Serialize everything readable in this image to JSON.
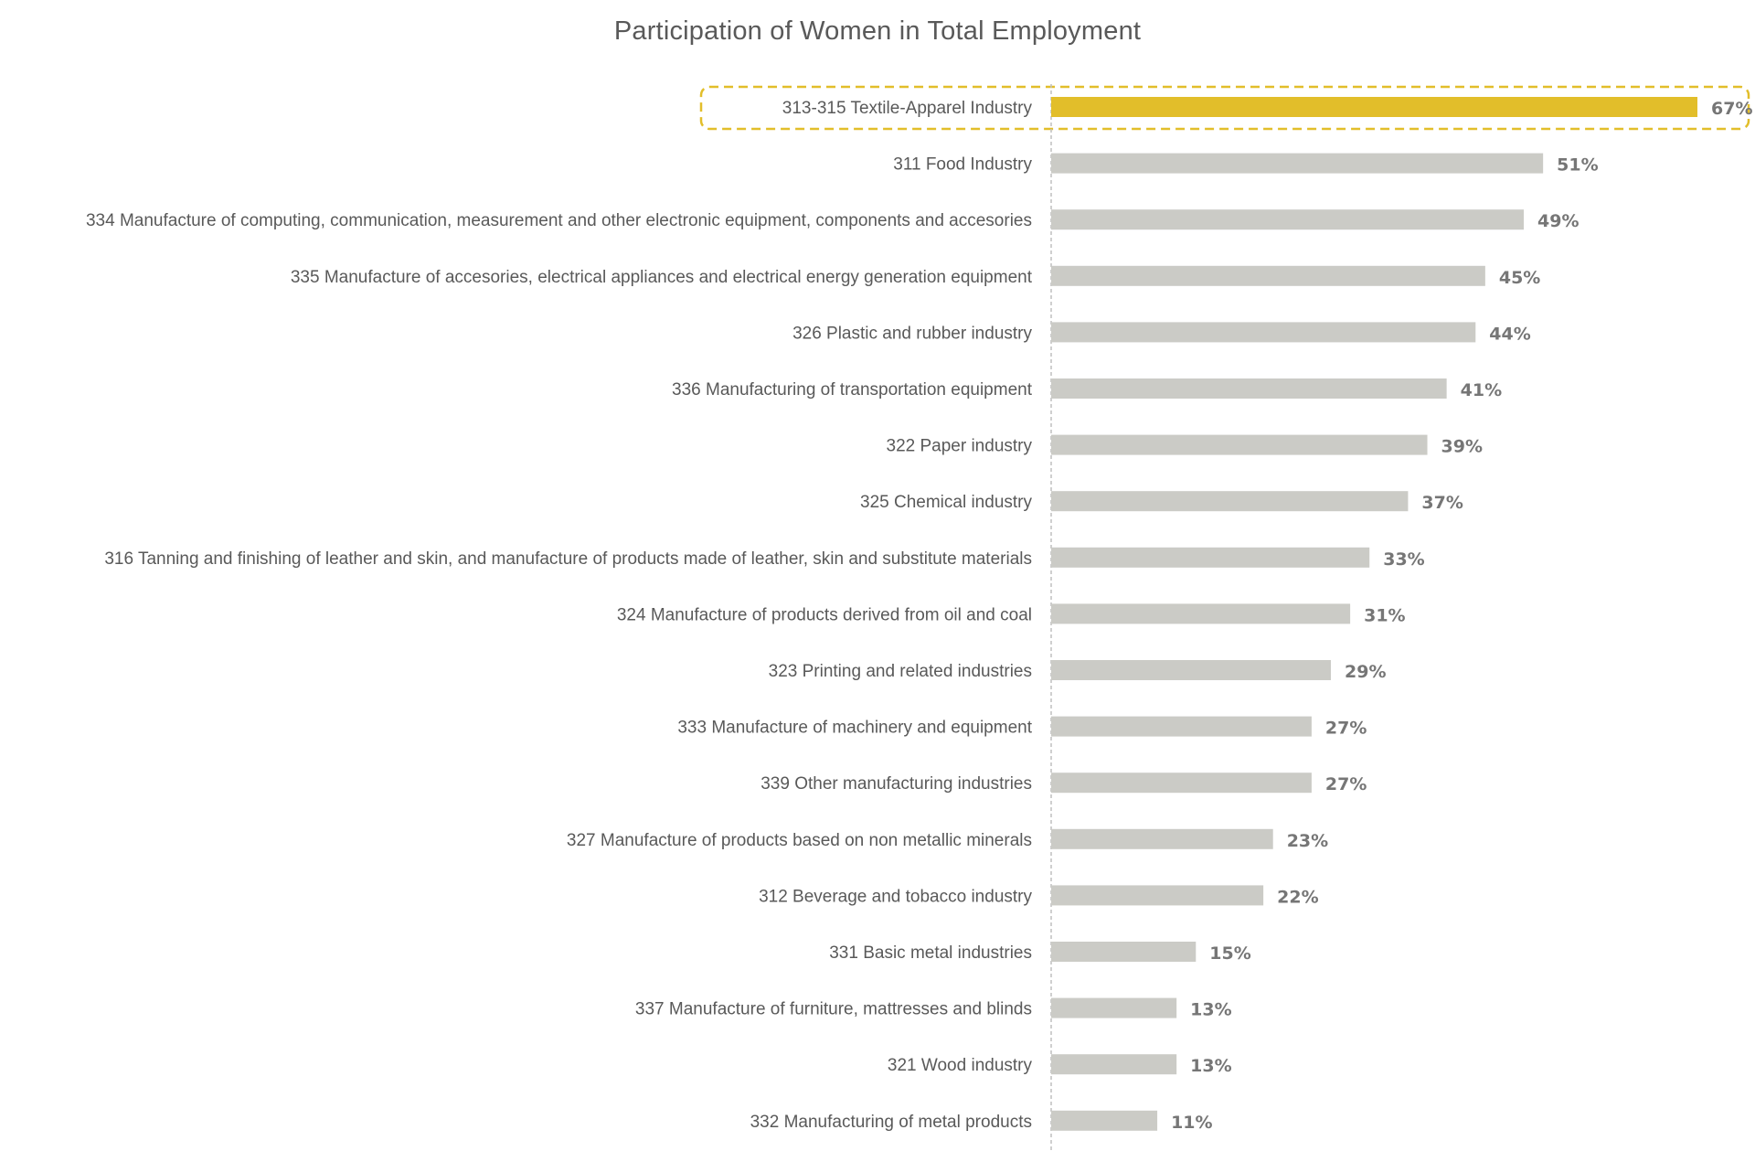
{
  "chart_data": {
    "type": "bar",
    "orientation": "horizontal",
    "title": "Participation of Women in Total Employment",
    "xlabel": "",
    "ylabel": "",
    "xlim": [
      0,
      67
    ],
    "grid": false,
    "legend": "none",
    "value_suffix": "%",
    "colors": {
      "highlight": "#E2BE2A",
      "default": "#CBCBC6",
      "highlight_border": "#E2BE2A",
      "axis": "#BFBFBF",
      "text": "#595959",
      "value_text": "#767676"
    },
    "highlighted_index": 0,
    "categories": [
      "313-315 Textile-Apparel Industry",
      "311 Food Industry",
      "334 Manufacture of computing, communication, measurement and other electronic equipment, components and accesories",
      "335 Manufacture of accesories, electrical appliances and electrical energy generation equipment",
      "326 Plastic and rubber industry",
      "336 Manufacturing of transportation equipment",
      "322 Paper industry",
      "325 Chemical industry",
      "316 Tanning and finishing of leather and skin, and manufacture of products made of leather, skin and substitute materials",
      "324 Manufacture of products derived from oil and coal",
      "323 Printing and related industries",
      "333 Manufacture of machinery and equipment",
      "339 Other manufacturing industries",
      "327 Manufacture of products based on non metallic minerals",
      "312 Beverage and tobacco industry",
      "331 Basic metal industries",
      "337 Manufacture of furniture, mattresses and blinds",
      "321 Wood industry",
      "332 Manufacturing of metal products"
    ],
    "values": [
      67,
      51,
      49,
      45,
      44,
      41,
      39,
      37,
      33,
      31,
      29,
      27,
      27,
      23,
      22,
      15,
      13,
      13,
      11
    ]
  }
}
